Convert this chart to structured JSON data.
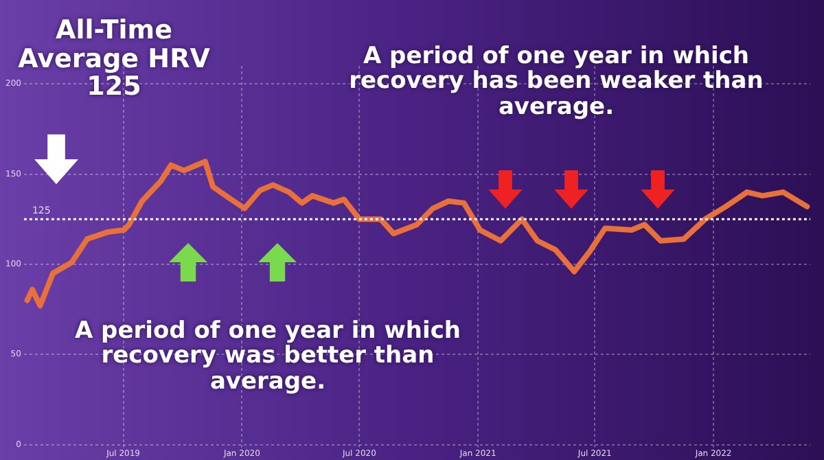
{
  "chart_data": {
    "type": "line",
    "annotations": [
      "All-Time Average HRV 125",
      "A period of one year in which recovery has been weaker than average.",
      "A period of one year in which recovery was better than average."
    ],
    "x": [
      "2019-02-02",
      "2019-02-10",
      "2019-02-22",
      "2019-03-14",
      "2019-04-12",
      "2019-05-06",
      "2019-06-08",
      "2019-07-02",
      "2019-07-10",
      "2019-07-30",
      "2019-08-28",
      "2019-09-13",
      "2019-10-03",
      "2019-11-05",
      "2019-11-17",
      "2019-12-11",
      "2020-01-05",
      "2020-01-29",
      "2020-02-18",
      "2020-03-14",
      "2020-04-03",
      "2020-04-19",
      "2020-05-22",
      "2020-06-07",
      "2020-07-01",
      "2020-08-03",
      "2020-08-23",
      "2020-09-28",
      "2020-10-23",
      "2020-11-16",
      "2020-12-10",
      "2021-01-04",
      "2021-02-05",
      "2021-03-10",
      "2021-04-03",
      "2021-05-01",
      "2021-05-30",
      "2021-06-23",
      "2021-07-17",
      "2021-08-27",
      "2021-09-16",
      "2021-10-11",
      "2021-11-16",
      "2021-12-19",
      "2022-01-20",
      "2022-02-22",
      "2022-03-18",
      "2022-04-19",
      "2022-05-26"
    ],
    "series": [
      {
        "color": "#e8703a",
        "values": [
          80,
          86,
          77,
          95,
          101,
          114,
          118,
          119,
          122,
          135,
          146,
          155,
          152,
          157,
          143,
          137,
          131,
          141,
          144,
          140,
          134,
          138,
          134,
          136,
          125,
          125,
          117,
          122,
          131,
          135,
          134,
          119,
          113,
          125,
          113,
          108,
          96,
          107,
          120,
          119,
          122,
          113,
          114,
          125,
          132,
          140,
          138,
          140,
          132
        ]
      }
    ],
    "xlim": [
      "2019-01-28",
      "2022-05-31"
    ],
    "xticks": [
      {
        "value": "2019-07-01",
        "label": "Jul 2019"
      },
      {
        "value": "2020-01-01",
        "label": "Jan 2020"
      },
      {
        "value": "2020-07-01",
        "label": "Jul 2020"
      },
      {
        "value": "2021-01-01",
        "label": "Jan 2021"
      },
      {
        "value": "2021-07-01",
        "label": "Jul 2021"
      },
      {
        "value": "2022-01-01",
        "label": "Jan 2022"
      }
    ],
    "ylim": [
      0,
      210
    ],
    "yticks": [
      0,
      50,
      100,
      150,
      200
    ],
    "ref_lines": [
      {
        "axis": "y",
        "value": 125,
        "label": "125",
        "color": "#ffffff",
        "line_style": "dotted"
      }
    ],
    "grid": true,
    "legend": false,
    "marker": "none",
    "line_style": "solid"
  }
}
